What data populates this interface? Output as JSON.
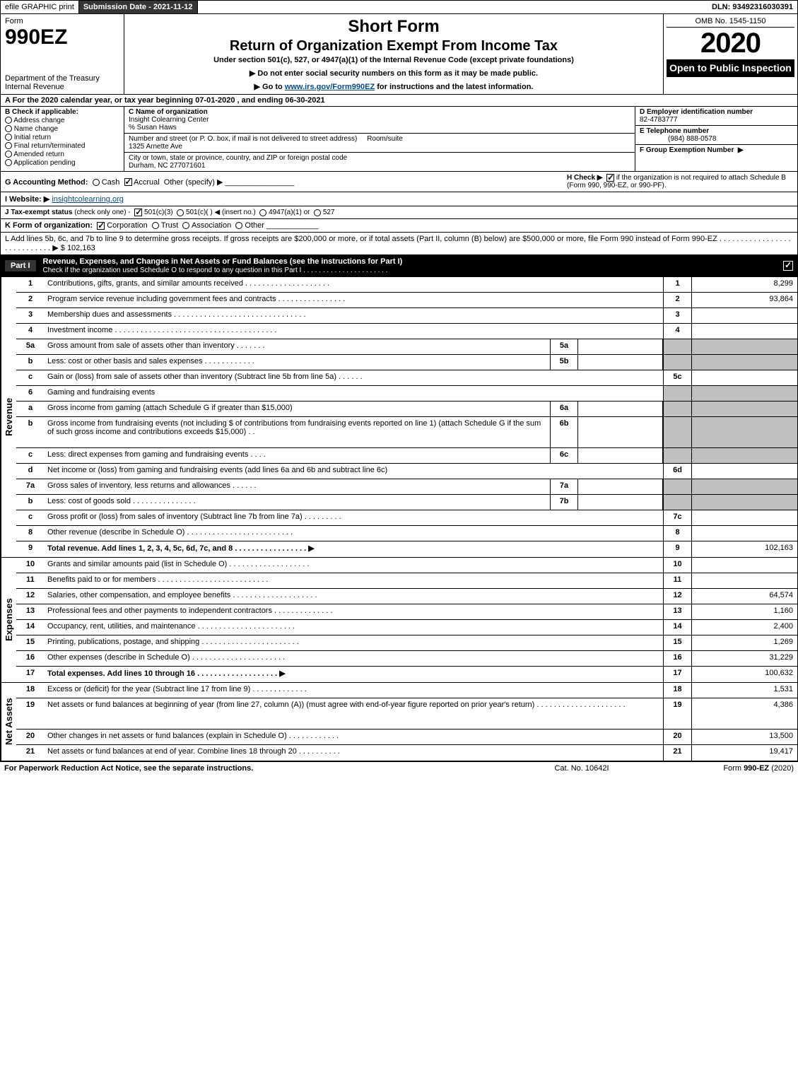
{
  "top_bar": {
    "efile_label": "efile GRAPHIC print",
    "submission_label": "Submission Date - 2021-11-12",
    "dln_label": "DLN: 93492316030391"
  },
  "header": {
    "form_label": "Form",
    "form_number": "990EZ",
    "dept1": "Department of the Treasury",
    "dept2": "Internal Revenue",
    "short_form": "Short Form",
    "main_title": "Return of Organization Exempt From Income Tax",
    "under_section": "Under section 501(c), 527, or 4947(a)(1) of the Internal Revenue Code (except private foundations)",
    "no_ssn": "▶ Do not enter social security numbers on this form as it may be made public.",
    "goto": "▶ Go to ",
    "goto_link": "www.irs.gov/Form990EZ",
    "goto_suffix": " for instructions and the latest information.",
    "omb": "OMB No. 1545-1150",
    "year": "2020",
    "open_to": "Open to Public Inspection"
  },
  "row_a": "A For the 2020 calendar year, or tax year beginning 07-01-2020 , and ending 06-30-2021",
  "section_b": {
    "title": "B  Check if applicable:",
    "items": [
      "Address change",
      "Name change",
      "Initial return",
      "Final return/terminated",
      "Amended return",
      "Application pending"
    ]
  },
  "section_c": {
    "label": "C Name of organization",
    "org_name": "Insight Colearning Center",
    "care_of": "% Susan Haws",
    "street_label": "Number and street (or P. O. box, if mail is not delivered to street address)",
    "room_label": "Room/suite",
    "street": "1325 Arnette Ave",
    "city_label": "City or town, state or province, country, and ZIP or foreign postal code",
    "city": "Durham, NC  277071601"
  },
  "section_d": {
    "label": "D Employer identification number",
    "ein": "82-4783777",
    "tel_label": "E Telephone number",
    "tel": "(984) 888-0578",
    "group_label": "F Group Exemption Number",
    "arrow": "▶"
  },
  "line_g": {
    "label": "G Accounting Method:",
    "cash": "Cash",
    "accrual": "Accrual",
    "other": "Other (specify) ▶"
  },
  "line_h": {
    "prefix": "H  Check ▶",
    "suffix": " if the organization is not required to attach Schedule B (Form 990, 990-EZ, or 990-PF)."
  },
  "line_i": {
    "label": "I Website: ▶",
    "value": "insightcolearning.org"
  },
  "line_j": {
    "label": "J Tax-exempt status",
    "note": "(check only one) -",
    "opt1": "501(c)(3)",
    "opt2": "501(c)(  ) ◀ (insert no.)",
    "opt3": "4947(a)(1) or",
    "opt4": "527"
  },
  "line_k": {
    "label": "K Form of organization:",
    "opt1": "Corporation",
    "opt2": "Trust",
    "opt3": "Association",
    "opt4": "Other"
  },
  "line_l": {
    "text": "L Add lines 5b, 6c, and 7b to line 9 to determine gross receipts. If gross receipts are $200,000 or more, or if total assets (Part II, column (B) below) are $500,000 or more, file Form 990 instead of Form 990-EZ  .  .  .  .  .  .  .  .  .  .  .  .  .  .  .  .  .  .  .  .  .  .  .  .  .  .  .  . ▶ $ ",
    "amount": "102,163"
  },
  "part1": {
    "label": "Part I",
    "title": "Revenue, Expenses, and Changes in Net Assets or Fund Balances (see the instructions for Part I)",
    "check_note": "Check if the organization used Schedule O to respond to any question in this Part I .  .  .  .  .  .  .  .  .  .  .  .  .  .  .  .  .  .  .  .  .  ."
  },
  "revenue_rows": [
    {
      "n": "1",
      "desc": "Contributions, gifts, grants, and similar amounts received .  .  .  .  .  .  .  .  .  .  .  .  .  .  .  .  .  .  .  .",
      "ln": "1",
      "val": "8,299"
    },
    {
      "n": "2",
      "desc": "Program service revenue including government fees and contracts .  .  .  .  .  .  .  .  .  .  .  .  .  .  .  .",
      "ln": "2",
      "val": "93,864"
    },
    {
      "n": "3",
      "desc": "Membership dues and assessments .  .  .  .  .  .  .  .  .  .  .  .  .  .  .  .  .  .  .  .  .  .  .  .  .  .  .  .  .  .  .",
      "ln": "3",
      "val": ""
    },
    {
      "n": "4",
      "desc": "Investment income .  .  .  .  .  .  .  .  .  .  .  .  .  .  .  .  .  .  .  .  .  .  .  .  .  .  .  .  .  .  .  .  .  .  .  .  .  .",
      "ln": "4",
      "val": ""
    },
    {
      "n": "5a",
      "desc": "Gross amount from sale of assets other than inventory .  .  .  .  .  .  .",
      "mid": "5a",
      "midval": "",
      "shaded": true
    },
    {
      "n": "b",
      "desc": "Less: cost or other basis and sales expenses .  .  .  .  .  .  .  .  .  .  .  .",
      "mid": "5b",
      "midval": "",
      "shaded": true
    },
    {
      "n": "c",
      "desc": "Gain or (loss) from sale of assets other than inventory (Subtract line 5b from line 5a)  .  .  .  .  .  .",
      "ln": "5c",
      "val": ""
    },
    {
      "n": "6",
      "desc": "Gaming and fundraising events",
      "shaded": true,
      "noval": true
    },
    {
      "n": "a",
      "desc": "Gross income from gaming (attach Schedule G if greater than $15,000)",
      "mid": "6a",
      "midval": "",
      "shaded": true
    },
    {
      "n": "b",
      "desc": "Gross income from fundraising events (not including $                       of contributions from fundraising events reported on line 1) (attach Schedule G if the sum of such gross income and contributions exceeds $15,000)    .   .",
      "mid": "6b",
      "midval": "",
      "shaded": true,
      "tall": true
    },
    {
      "n": "c",
      "desc": "Less: direct expenses from gaming and fundraising events   .  .  .  .",
      "mid": "6c",
      "midval": "",
      "shaded": true
    },
    {
      "n": "d",
      "desc": "Net income or (loss) from gaming and fundraising events (add lines 6a and 6b and subtract line 6c)",
      "ln": "6d",
      "val": ""
    },
    {
      "n": "7a",
      "desc": "Gross sales of inventory, less returns and allowances .  .  .  .  .  .",
      "mid": "7a",
      "midval": "",
      "shaded": true
    },
    {
      "n": "b",
      "desc": "Less: cost of goods sold         .  .  .  .  .  .  .  .  .  .  .  .  .  .  .",
      "mid": "7b",
      "midval": "",
      "shaded": true
    },
    {
      "n": "c",
      "desc": "Gross profit or (loss) from sales of inventory (Subtract line 7b from line 7a)  .  .  .  .  .  .  .  .  .",
      "ln": "7c",
      "val": ""
    },
    {
      "n": "8",
      "desc": "Other revenue (describe in Schedule O) .  .  .  .  .  .  .  .  .  .  .  .  .  .  .  .  .  .  .  .  .  .  .  .  .",
      "ln": "8",
      "val": ""
    },
    {
      "n": "9",
      "desc": "Total revenue. Add lines 1, 2, 3, 4, 5c, 6d, 7c, and 8  .  .  .  .  .  .  .  .  .  .  .  .  .  .  .  .  .   ▶",
      "ln": "9",
      "val": "102,163",
      "bold": true
    }
  ],
  "expense_rows": [
    {
      "n": "10",
      "desc": "Grants and similar amounts paid (list in Schedule O) .  .  .  .  .  .  .  .  .  .  .  .  .  .  .  .  .  .  .",
      "ln": "10",
      "val": ""
    },
    {
      "n": "11",
      "desc": "Benefits paid to or for members     .  .  .  .  .  .  .  .  .  .  .  .  .  .  .  .  .  .  .  .  .  .  .  .  .  .",
      "ln": "11",
      "val": ""
    },
    {
      "n": "12",
      "desc": "Salaries, other compensation, and employee benefits .  .  .  .  .  .  .  .  .  .  .  .  .  .  .  .  .  .  .  .",
      "ln": "12",
      "val": "64,574"
    },
    {
      "n": "13",
      "desc": "Professional fees and other payments to independent contractors .  .  .  .  .  .  .  .  .  .  .  .  .  .",
      "ln": "13",
      "val": "1,160"
    },
    {
      "n": "14",
      "desc": "Occupancy, rent, utilities, and maintenance .  .  .  .  .  .  .  .  .  .  .  .  .  .  .  .  .  .  .  .  .  .  .",
      "ln": "14",
      "val": "2,400"
    },
    {
      "n": "15",
      "desc": "Printing, publications, postage, and shipping .  .  .  .  .  .  .  .  .  .  .  .  .  .  .  .  .  .  .  .  .  .  .",
      "ln": "15",
      "val": "1,269"
    },
    {
      "n": "16",
      "desc": "Other expenses (describe in Schedule O)     .  .  .  .  .  .  .  .  .  .  .  .  .  .  .  .  .  .  .  .  .  .",
      "ln": "16",
      "val": "31,229"
    },
    {
      "n": "17",
      "desc": "Total expenses. Add lines 10 through 16     .  .  .  .  .  .  .  .  .  .  .  .  .  .  .  .  .  .  .   ▶",
      "ln": "17",
      "val": "100,632",
      "bold": true
    }
  ],
  "netasset_rows": [
    {
      "n": "18",
      "desc": "Excess or (deficit) for the year (Subtract line 17 from line 9)        .  .  .  .  .  .  .  .  .  .  .  .  .",
      "ln": "18",
      "val": "1,531"
    },
    {
      "n": "19",
      "desc": "Net assets or fund balances at beginning of year (from line 27, column (A)) (must agree with end-of-year figure reported on prior year's return) .  .  .  .  .  .  .  .  .  .  .  .  .  .  .  .  .  .  .  .  .",
      "ln": "19",
      "val": "4,386",
      "tall": true
    },
    {
      "n": "20",
      "desc": "Other changes in net assets or fund balances (explain in Schedule O) .  .  .  .  .  .  .  .  .  .  .  .",
      "ln": "20",
      "val": "13,500"
    },
    {
      "n": "21",
      "desc": "Net assets or fund balances at end of year. Combine lines 18 through 20 .  .  .  .  .  .  .  .  .  .",
      "ln": "21",
      "val": "19,417"
    }
  ],
  "footer": {
    "left": "For Paperwork Reduction Act Notice, see the separate instructions.",
    "center": "Cat. No. 10642I",
    "right_prefix": "Form ",
    "right_bold": "990-EZ",
    "right_suffix": " (2020)"
  },
  "side_labels": {
    "revenue": "Revenue",
    "expenses": "Expenses",
    "netassets": "Net Assets"
  }
}
